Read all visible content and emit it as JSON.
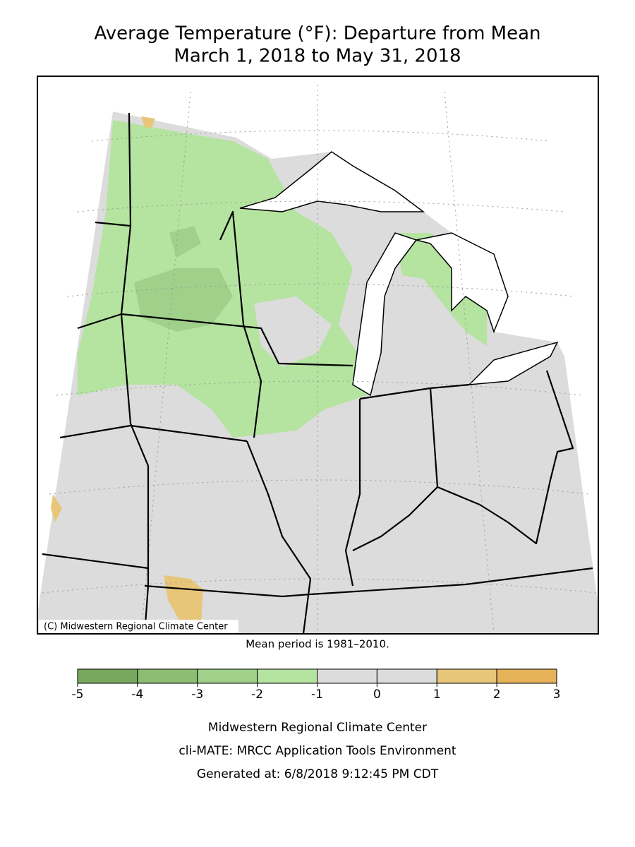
{
  "title": "Average Temperature (°F): Departure from Mean",
  "subtitle": "March 1, 2018 to May 31, 2018",
  "copyright": "(C) Midwestern Regional Climate Center",
  "note": "Mean period is 1981–2010.",
  "legend": {
    "ticks": [
      -5,
      -4,
      -3,
      -2,
      -1,
      0,
      1,
      2,
      3
    ],
    "colors": [
      "#78a85e",
      "#8cbd72",
      "#a0d08a",
      "#b5e3a0",
      "#dcdcdc",
      "#dcdcdc",
      "#e8c679",
      "#e6b35a"
    ]
  },
  "footer": [
    "Midwestern Regional Climate Center",
    "cli-MATE: MRCC Application Tools Environment",
    "Generated at: 6/8/2018 9:12:45 PM CDT"
  ]
}
